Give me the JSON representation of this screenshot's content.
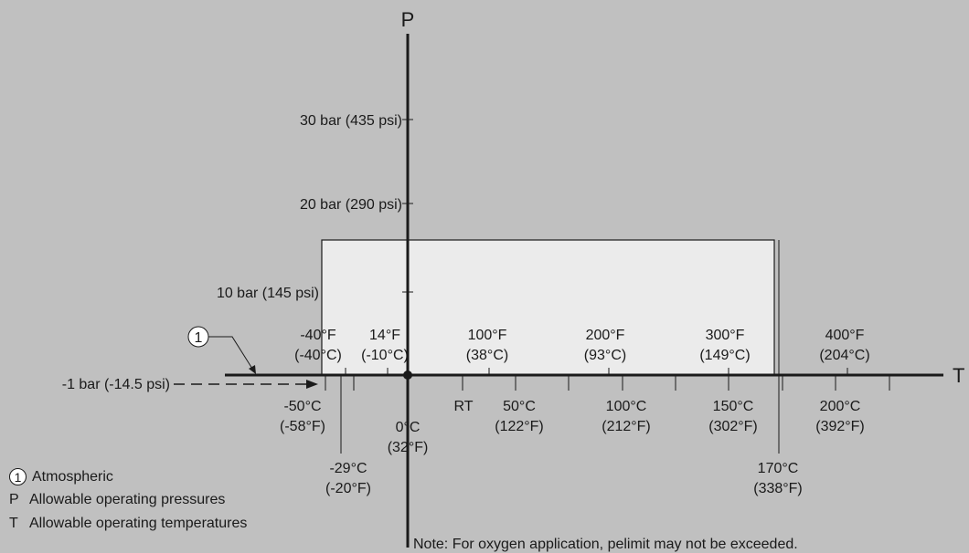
{
  "axes": {
    "p_label": "P",
    "t_label": "T"
  },
  "pressure_labels": [
    "30 bar (435 psi)",
    "20 bar (290 psi)",
    "10 bar (145 psi)"
  ],
  "atmospheric_pressure_label": "-1 bar (-14.5 psi)",
  "callout_number": "1",
  "top_temperature_labels": [
    {
      "line1": "-40°F",
      "line2": "(-40°C)"
    },
    {
      "line1": "14°F",
      "line2": "(-10°C)"
    },
    {
      "line1": "100°F",
      "line2": "(38°C)"
    },
    {
      "line1": "200°F",
      "line2": "(93°C)"
    },
    {
      "line1": "300°F",
      "line2": "(149°C)"
    },
    {
      "line1": "400°F",
      "line2": "(204°C)"
    }
  ],
  "bottom_temperature_labels": [
    {
      "line1": "-50°C",
      "line2": "(-58°F)"
    },
    {
      "line1": "-29°C",
      "line2": "(-20°F)"
    },
    {
      "line1": "0°C",
      "line2": "(32°F)"
    },
    {
      "line1": "RT",
      "line2": ""
    },
    {
      "line1": "50°C",
      "line2": "(122°F)"
    },
    {
      "line1": "100°C",
      "line2": "(212°F)"
    },
    {
      "line1": "150°C",
      "line2": "(302°F)"
    },
    {
      "line1": "170°C",
      "line2": "(338°F)"
    },
    {
      "line1": "200°C",
      "line2": "(392°F)"
    }
  ],
  "legend": [
    {
      "key": "1",
      "text": "Atmospheric"
    },
    {
      "key": "P",
      "text": "Allowable operating pressures"
    },
    {
      "key": "T",
      "text": "Allowable operating temperatures"
    }
  ],
  "note": "Note: For oxygen application, pelimit may not be exceeded.",
  "colors": {
    "background": "#c0c0c0",
    "region_fill": "#ebebeb",
    "line": "#1a1a1a"
  }
}
